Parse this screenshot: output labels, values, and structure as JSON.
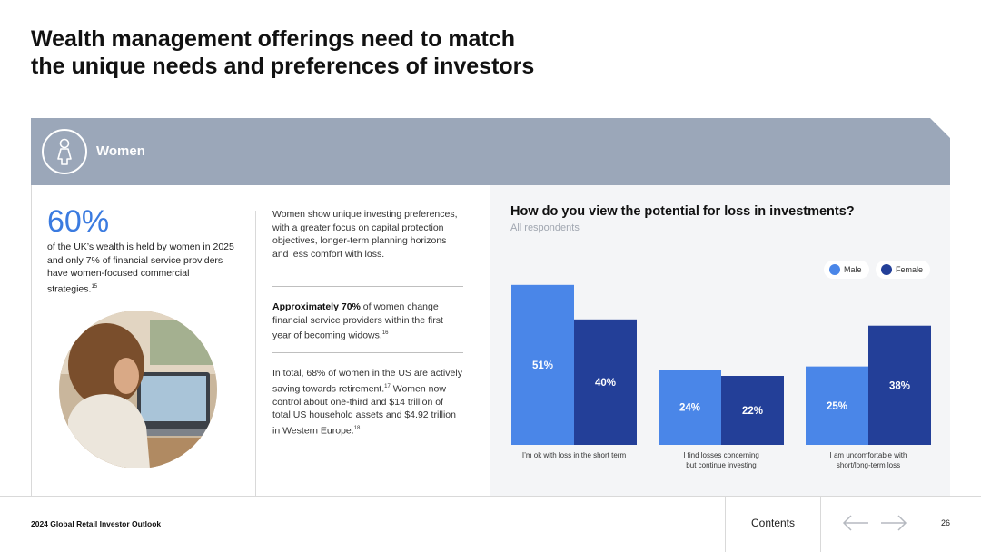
{
  "title_line1": "Wealth management offerings need to match",
  "title_line2": "the unique needs and preferences of investors",
  "band": {
    "label": "Women",
    "icon": "woman-icon"
  },
  "stat": {
    "value": "60%",
    "text": "of the UK’s wealth is held by women in 2025 and only 7% of financial service providers have women-focused commercial strategies.",
    "footnote": "15"
  },
  "paragraphs": [
    {
      "text": "Women show unique investing preferences, with a greater focus on capital protection objectives, longer-term planning horizons and less comfort with loss."
    },
    {
      "bold": "Approximately 70%",
      "text": " of women change financial service providers within the first year of becoming widows.",
      "footnote": "16"
    },
    {
      "text": "In total, 68% of women in the US are actively saving towards retirement.",
      "footnote": "17",
      "text2": " Women now control about one-third and $14 trillion of total US household assets and $4.92 trillion in Western Europe.",
      "footnote2": "18"
    }
  ],
  "chart_data": {
    "type": "bar",
    "title": "How do you view the potential for loss in investments?",
    "subtitle": "All respondents",
    "categories": [
      [
        "I’m ok with loss in the short term"
      ],
      [
        "I find losses concerning",
        "but continue investing"
      ],
      [
        "I am uncomfortable with",
        "short/long-term loss"
      ]
    ],
    "series": [
      {
        "name": "Male",
        "color": "#4a86e8",
        "values": [
          51,
          24,
          25
        ]
      },
      {
        "name": "Female",
        "color": "#233f98",
        "values": [
          40,
          22,
          38
        ]
      }
    ],
    "value_suffix": "%",
    "ylim": [
      0,
      55
    ],
    "legend": "top-right",
    "grid": false
  },
  "colors": {
    "band": "#9ba7b9",
    "accent": "#3b7be0"
  },
  "footer": {
    "report": "2024 Global Retail Investor Outlook",
    "contents": "Contents",
    "page": "26",
    "prev_icon": "arrow-left-icon",
    "next_icon": "arrow-right-icon"
  }
}
